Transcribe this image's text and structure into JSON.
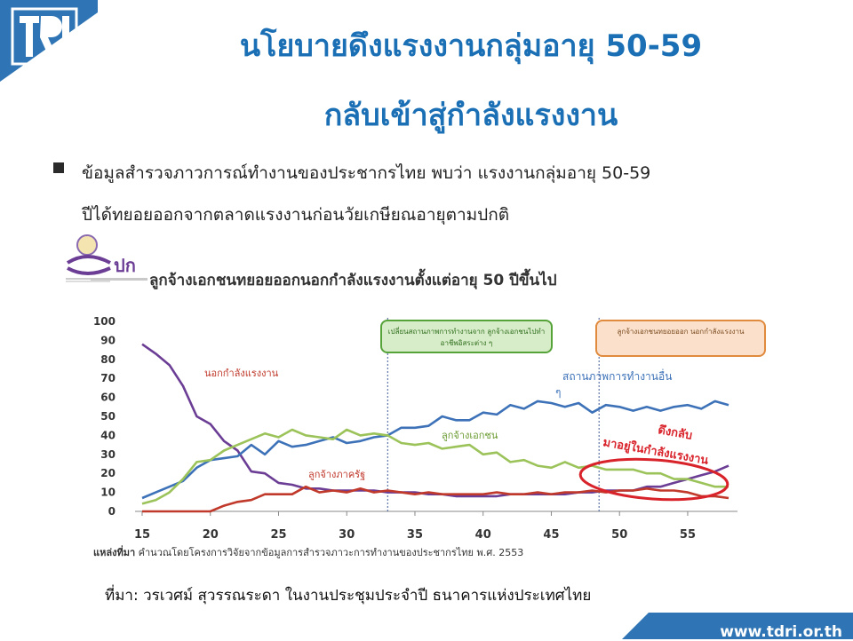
{
  "header": {
    "title_line1": "นโยบายดึงแรงงานกลุ่มอายุ 50-59",
    "title_line2": "กลับเข้าสู่กำลังแรงงาน"
  },
  "bullet": {
    "line1": "ข้อมูลสำรวจภาวการณ์ทำงานของประชากรไทย  พบว่า แรงงานกลุ่มอายุ 50-59",
    "line2": "ปีได้ทยอยออกจากตลาดแรงงานก่อนวัยเกษียณอายุตามปกติ"
  },
  "chart_heading": "ลูกจ้างเอกชนทยอยออกนอกกำลังแรงงานตั้งแต่อายุ 50 ปีขึ้นไป",
  "chart_logo_text": "ปก",
  "colors": {
    "title": "#1a6fb5",
    "brand_blue": "#2f75b5",
    "outside_labor_force": "#6b3d95",
    "other_work_status": "#3d72b8",
    "private_employees": "#9bc35a",
    "govt_employees": "#c0392b",
    "highlight_red": "#d9232b"
  },
  "chart_data": {
    "type": "line",
    "x": [
      15,
      16,
      17,
      18,
      19,
      20,
      21,
      22,
      23,
      24,
      25,
      26,
      27,
      28,
      29,
      30,
      31,
      32,
      33,
      34,
      35,
      36,
      37,
      38,
      39,
      40,
      41,
      42,
      43,
      44,
      45,
      46,
      47,
      48,
      49,
      50,
      51,
      52,
      53,
      54,
      55,
      56,
      57,
      58
    ],
    "xticks": [
      15,
      20,
      25,
      30,
      35,
      40,
      45,
      50,
      55
    ],
    "yticks": [
      0,
      10,
      20,
      30,
      40,
      50,
      60,
      70,
      80,
      90,
      100
    ],
    "ylim": [
      0,
      100
    ],
    "xlim": [
      15,
      58
    ],
    "series": [
      {
        "name": "นอกกำลังแรงงาน",
        "color": "#6b3d95",
        "values": [
          88,
          83,
          77,
          66,
          50,
          46,
          37,
          32,
          21,
          20,
          15,
          14,
          12,
          12,
          11,
          11,
          11,
          11,
          10,
          10,
          10,
          9,
          9,
          8,
          8,
          8,
          8,
          9,
          9,
          9,
          9,
          9,
          10,
          10,
          11,
          11,
          11,
          13,
          13,
          15,
          17,
          19,
          21,
          24
        ]
      },
      {
        "name": "สถานภาพการทำงานอื่น ๆ",
        "color": "#3d72b8",
        "values": [
          7,
          10,
          13,
          16,
          23,
          27,
          28,
          29,
          35,
          30,
          37,
          34,
          35,
          37,
          39,
          36,
          37,
          39,
          40,
          44,
          44,
          45,
          50,
          48,
          48,
          52,
          51,
          56,
          54,
          58,
          57,
          55,
          57,
          52,
          56,
          55,
          53,
          55,
          53,
          55,
          56,
          54,
          58,
          56
        ]
      },
      {
        "name": "ลูกจ้างเอกชน",
        "color": "#9bc35a",
        "values": [
          4,
          6,
          10,
          17,
          26,
          27,
          32,
          35,
          38,
          41,
          39,
          43,
          40,
          39,
          38,
          43,
          40,
          41,
          40,
          36,
          35,
          36,
          33,
          34,
          35,
          30,
          31,
          26,
          27,
          24,
          23,
          26,
          23,
          24,
          22,
          22,
          22,
          20,
          20,
          17,
          17,
          15,
          13,
          13
        ]
      },
      {
        "name": "ลูกจ้างภาครัฐ",
        "color": "#c0392b",
        "values": [
          0,
          0,
          0,
          0,
          0,
          0,
          3,
          5,
          6,
          9,
          9,
          9,
          13,
          10,
          11,
          10,
          12,
          10,
          11,
          10,
          9,
          10,
          9,
          9,
          9,
          9,
          10,
          9,
          9,
          10,
          9,
          10,
          10,
          11,
          10,
          11,
          11,
          12,
          11,
          11,
          10,
          8,
          8,
          7
        ]
      }
    ],
    "annotations": {
      "label_outside": "นอกกำลังแรงงาน",
      "label_other": "สถานภาพการทำงานอื่น ๆ",
      "label_private": "ลูกจ้างเอกชน",
      "label_govt": "ลูกจ้างภาครัฐ",
      "box_green": "เปลี่ยนสถานภาพการทำงานจาก ลูกจ้างเอกชนไปทำอาชีพอิสระต่าง ๆ",
      "box_orange": "ลูกจ้างเอกชนทยอยออก นอกกำลังแรงงาน",
      "pull_back_line1": "ดึงกลับ",
      "pull_back_line2": "มาอยู่ในกำลังแรงงาน"
    },
    "vlines": [
      33,
      48.5
    ]
  },
  "source_label": "แหล่งที่มา",
  "source_text": " คำนวณโดยโครงการวิจัยจากข้อมูลการสำรวจภาวะการทำงานของประชากรไทย พ.ศ. 2553",
  "attribution": "ที่มา: วรเวศม์ สุวรรณระดา ในงานประชุมประจำปี ธนาคารแห่งประเทศไทย",
  "footer_url": "www.tdri.or.th"
}
